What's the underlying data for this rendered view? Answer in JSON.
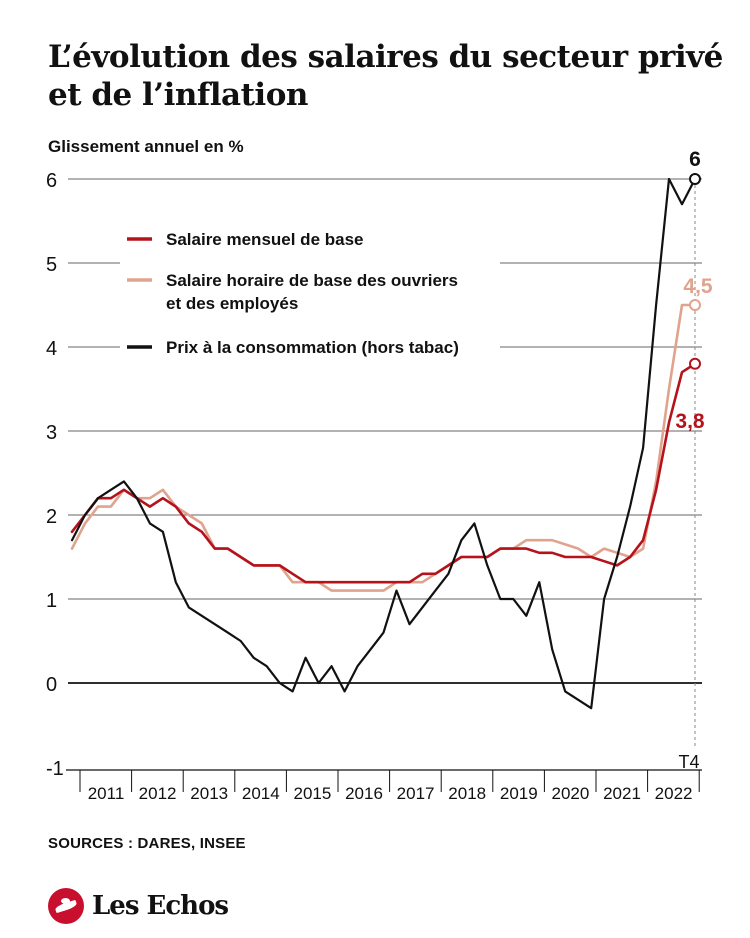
{
  "title": "L’évolution des salaires du secteur privé et de l’inflation",
  "subtitle": "Glissement annuel en %",
  "sources": "SOURCES : DARES, INSEE",
  "brand": "Les Echos",
  "colors": {
    "red": "#b5121b",
    "pink": "#e0a38e",
    "black": "#111111",
    "grid": "#555555"
  },
  "chart_data": {
    "type": "line",
    "ylabel": "Glissement annuel en %",
    "ylim": [
      -1,
      6
    ],
    "yticks": [
      -1,
      0,
      1,
      2,
      3,
      4,
      5,
      6
    ],
    "year_labels": [
      "2011",
      "2012",
      "2013",
      "2014",
      "2015",
      "2016",
      "2017",
      "2018",
      "2019",
      "2020",
      "2021",
      "2022"
    ],
    "end_label": "T4",
    "grid": true,
    "legend_position": "top-left",
    "series": [
      {
        "name": "Salaire mensuel de base",
        "color": "#b5121b",
        "end_label": "3,8",
        "values": [
          1.8,
          2.0,
          2.2,
          2.2,
          2.3,
          2.2,
          2.1,
          2.2,
          2.1,
          1.9,
          1.8,
          1.6,
          1.6,
          1.5,
          1.4,
          1.4,
          1.4,
          1.3,
          1.2,
          1.2,
          1.2,
          1.2,
          1.2,
          1.2,
          1.2,
          1.2,
          1.2,
          1.3,
          1.3,
          1.4,
          1.5,
          1.5,
          1.5,
          1.6,
          1.6,
          1.6,
          1.55,
          1.55,
          1.5,
          1.5,
          1.5,
          1.45,
          1.4,
          1.5,
          1.7,
          2.3,
          3.1,
          3.7,
          3.8
        ]
      },
      {
        "name": "Salaire horaire de base des ouvriers et des employés",
        "color": "#e0a38e",
        "end_label": "4,5",
        "values": [
          1.6,
          1.9,
          2.1,
          2.1,
          2.3,
          2.2,
          2.2,
          2.3,
          2.1,
          2.0,
          1.9,
          1.6,
          1.6,
          1.5,
          1.4,
          1.4,
          1.4,
          1.2,
          1.2,
          1.2,
          1.1,
          1.1,
          1.1,
          1.1,
          1.1,
          1.2,
          1.2,
          1.2,
          1.3,
          1.4,
          1.5,
          1.5,
          1.5,
          1.6,
          1.6,
          1.7,
          1.7,
          1.7,
          1.65,
          1.6,
          1.5,
          1.6,
          1.55,
          1.5,
          1.6,
          2.4,
          3.5,
          4.5,
          4.5
        ]
      },
      {
        "name": "Prix à la consommation (hors tabac)",
        "color": "#111111",
        "end_label": "6",
        "values": [
          1.7,
          2.0,
          2.2,
          2.3,
          2.4,
          2.2,
          1.9,
          1.8,
          1.2,
          0.9,
          0.8,
          0.7,
          0.6,
          0.5,
          0.3,
          0.2,
          0.0,
          -0.1,
          0.3,
          0.0,
          0.2,
          -0.1,
          0.2,
          0.4,
          0.6,
          1.1,
          0.7,
          0.9,
          1.1,
          1.3,
          1.7,
          1.9,
          1.4,
          1.0,
          1.0,
          0.8,
          1.2,
          0.4,
          -0.1,
          -0.2,
          -0.3,
          1.0,
          1.5,
          2.1,
          2.8,
          4.5,
          6.0,
          5.7,
          6.0
        ]
      }
    ]
  }
}
